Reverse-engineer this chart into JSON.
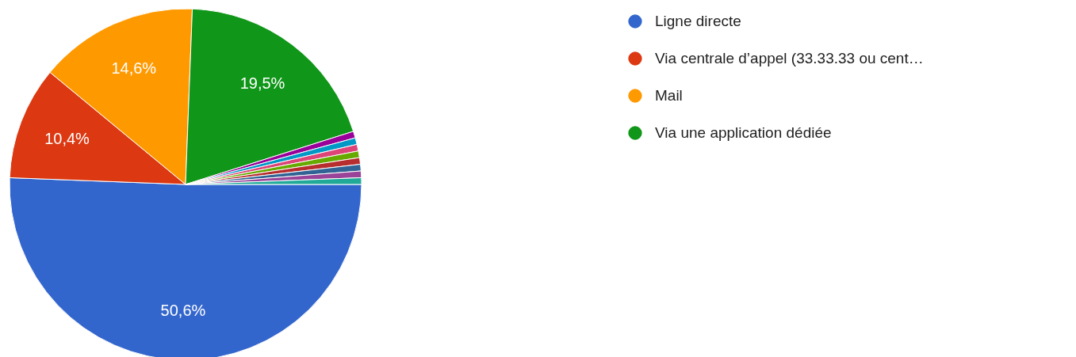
{
  "chart_data": {
    "type": "pie",
    "categories": [
      "Ligne directe",
      "Via centrale d’appel (33.33.33 ou cent…",
      "Mail",
      "Via une application dédiée",
      null,
      null,
      null,
      null,
      null,
      null,
      null,
      null
    ],
    "values": [
      50.6,
      10.4,
      14.6,
      19.5,
      0.61,
      0.61,
      0.61,
      0.61,
      0.61,
      0.61,
      0.61,
      0.61
    ],
    "colors": [
      "#3366cc",
      "#dc3912",
      "#ff9900",
      "#109618",
      "#990099",
      "#0099c6",
      "#dd4477",
      "#66aa00",
      "#b82e2e",
      "#316395",
      "#994499",
      "#22aa99"
    ],
    "value_labels": [
      "50,6%",
      "10,4%",
      "14,6%",
      "19,5%",
      null,
      null,
      null,
      null,
      null,
      null,
      null,
      null
    ],
    "legend": "right"
  }
}
